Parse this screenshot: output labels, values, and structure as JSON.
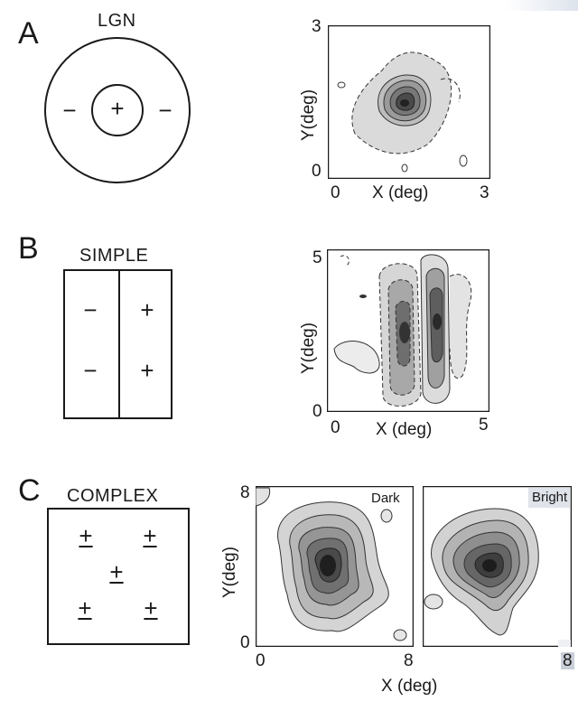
{
  "panels": [
    {
      "letter": "A",
      "title": "LGN",
      "signs": [
        "+",
        "−",
        "−"
      ],
      "map": {
        "y_top": "3",
        "y_bottom": "0",
        "x_left": "0",
        "x_right": "3",
        "x_label": "X (deg)",
        "y_label": "Y(deg)"
      }
    },
    {
      "letter": "B",
      "title": "SIMPLE",
      "signs": [
        "−",
        "+",
        "−",
        "+"
      ],
      "map": {
        "y_top": "5",
        "y_bottom": "0",
        "x_left": "0",
        "x_right": "5",
        "x_label": "X (deg)",
        "y_label": "Y(deg)"
      }
    },
    {
      "letter": "C",
      "title": "COMPLEX",
      "signs": [
        "+",
        "+",
        "+",
        "+",
        "+"
      ],
      "maps": {
        "y_top": "8",
        "y_bottom": "0",
        "x_left": "0",
        "x_mid": "8",
        "x_right": "8",
        "x_label": "X (deg)",
        "y_label": "Y(deg)",
        "left_tag": "Dark",
        "right_tag": "Bright"
      }
    }
  ],
  "colors": {
    "ink": "#1a1a1a",
    "light_fill": "#d9d9d9",
    "mid_fill": "#a8a8a8",
    "dark_fill": "#6a6a6a",
    "core_fill": "#2e2e2e"
  }
}
